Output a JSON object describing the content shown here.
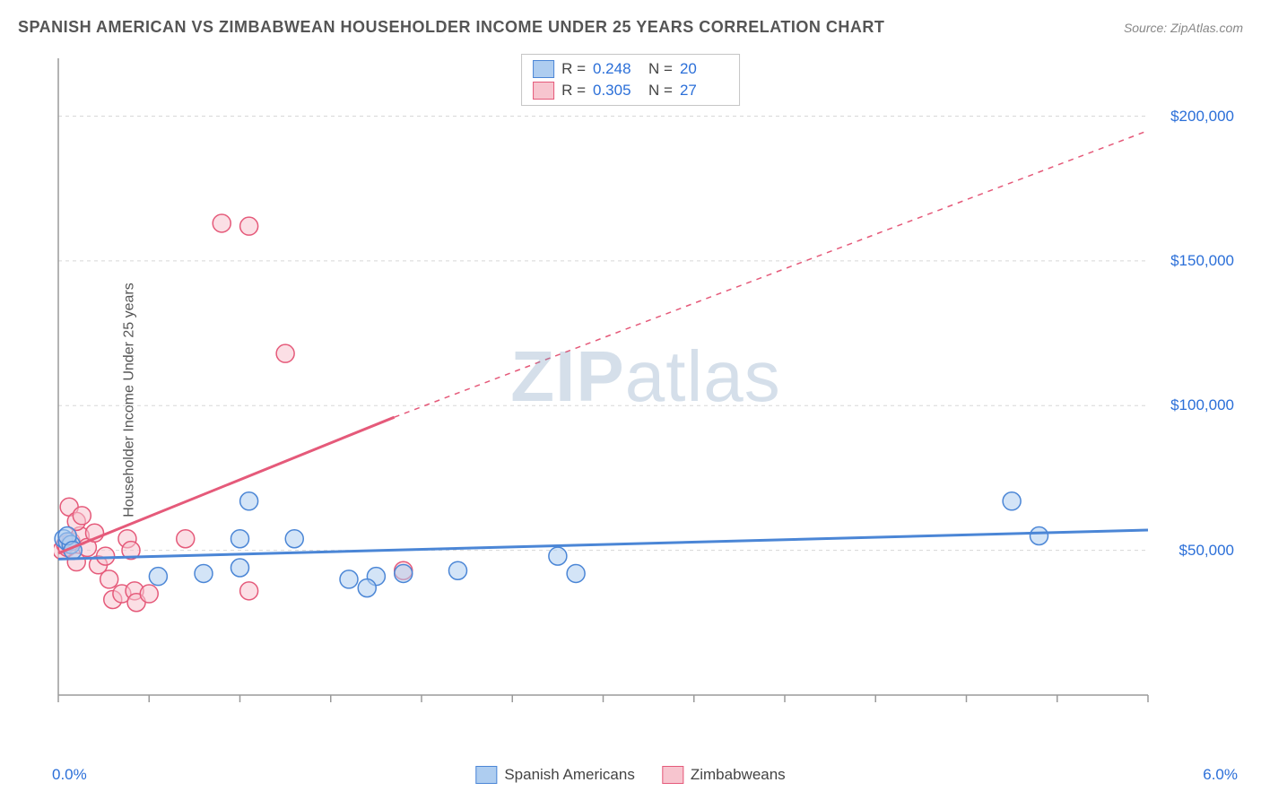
{
  "title": "SPANISH AMERICAN VS ZIMBABWEAN HOUSEHOLDER INCOME UNDER 25 YEARS CORRELATION CHART",
  "source": "Source: ZipAtlas.com",
  "y_axis_label": "Householder Income Under 25 years",
  "watermark_bold": "ZIP",
  "watermark_light": "atlas",
  "chart": {
    "type": "scatter",
    "xlim": [
      0,
      6.0
    ],
    "ylim": [
      0,
      220000
    ],
    "x_ticks": [
      0,
      0.5,
      1.0,
      1.5,
      2.0,
      2.5,
      3.0,
      3.5,
      4.0,
      4.5,
      5.0,
      5.5,
      6.0
    ],
    "x_tick_labels_shown": {
      "0": "0.0%",
      "6": "6.0%"
    },
    "y_gridlines": [
      50000,
      100000,
      150000,
      200000
    ],
    "y_tick_labels": {
      "50000": "$50,000",
      "100000": "$100,000",
      "150000": "$150,000",
      "200000": "$200,000"
    },
    "background_color": "#ffffff",
    "grid_color": "#d8d8d8",
    "axis_color": "#9a9a9a",
    "marker_radius": 10,
    "marker_opacity": 0.55,
    "series": [
      {
        "name": "Spanish Americans",
        "color_fill": "#aecdf0",
        "color_stroke": "#4b86d6",
        "r": 0.248,
        "n": 20,
        "regression": {
          "x1": 0,
          "y1": 47000,
          "x2": 6.0,
          "y2": 57000,
          "dash": false,
          "width": 3
        },
        "points": [
          [
            0.03,
            54000
          ],
          [
            0.05,
            53000
          ],
          [
            0.07,
            52000
          ],
          [
            0.05,
            55000
          ],
          [
            0.08,
            50000
          ],
          [
            0.55,
            41000
          ],
          [
            0.8,
            42000
          ],
          [
            1.0,
            44000
          ],
          [
            1.0,
            54000
          ],
          [
            1.05,
            67000
          ],
          [
            1.3,
            54000
          ],
          [
            1.6,
            40000
          ],
          [
            1.75,
            41000
          ],
          [
            1.7,
            37000
          ],
          [
            1.9,
            42000
          ],
          [
            2.2,
            43000
          ],
          [
            2.75,
            48000
          ],
          [
            2.85,
            42000
          ],
          [
            5.25,
            67000
          ],
          [
            5.4,
            55000
          ]
        ]
      },
      {
        "name": "Zimbabweans",
        "color_fill": "#f7c5cf",
        "color_stroke": "#e55a7a",
        "r": 0.305,
        "n": 27,
        "regression_solid": {
          "x1": 0,
          "y1": 49000,
          "x2": 1.85,
          "y2": 96000,
          "width": 3
        },
        "regression_dash": {
          "x1": 1.85,
          "y1": 96000,
          "x2": 6.0,
          "y2": 195000,
          "width": 1.5
        },
        "points": [
          [
            0.02,
            50000
          ],
          [
            0.04,
            52000
          ],
          [
            0.05,
            51000
          ],
          [
            0.06,
            65000
          ],
          [
            0.07,
            53000
          ],
          [
            0.1,
            46000
          ],
          [
            0.12,
            55000
          ],
          [
            0.1,
            60000
          ],
          [
            0.13,
            62000
          ],
          [
            0.16,
            51000
          ],
          [
            0.2,
            56000
          ],
          [
            0.22,
            45000
          ],
          [
            0.26,
            48000
          ],
          [
            0.28,
            40000
          ],
          [
            0.3,
            33000
          ],
          [
            0.35,
            35000
          ],
          [
            0.38,
            54000
          ],
          [
            0.4,
            50000
          ],
          [
            0.42,
            36000
          ],
          [
            0.43,
            32000
          ],
          [
            0.5,
            35000
          ],
          [
            0.7,
            54000
          ],
          [
            0.9,
            163000
          ],
          [
            1.05,
            162000
          ],
          [
            1.05,
            36000
          ],
          [
            1.25,
            118000
          ],
          [
            1.9,
            43000
          ]
        ]
      }
    ]
  },
  "legend": {
    "series1_label": "Spanish Americans",
    "series2_label": "Zimbabweans"
  },
  "stats_labels": {
    "r": "R =",
    "n": "N ="
  }
}
